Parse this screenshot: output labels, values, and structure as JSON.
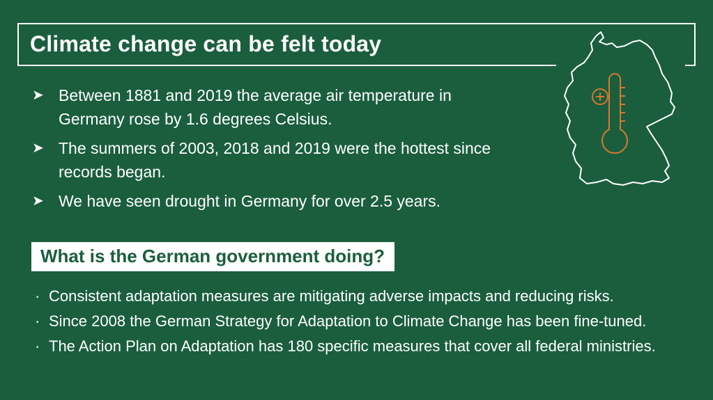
{
  "header": {
    "title": "Climate change can be felt today"
  },
  "facts": {
    "items": [
      {
        "bullet": "➤",
        "text": "Between 1881 and 2019 the average air temperature in Germany rose by 1.6 degrees Celsius."
      },
      {
        "bullet": "➤",
        "text": "The summers of 2003, 2018 and 2019 were the hottest since records began."
      },
      {
        "bullet": "➤",
        "text": "We have seen drought in Germany for over 2.5 years."
      }
    ]
  },
  "illustration": {
    "icon": "germany-map-thermometer-icon",
    "outline_color": "#ffffff",
    "thermometer_color": "#d9782d"
  },
  "government": {
    "heading": "What is the German government doing?",
    "items": [
      {
        "bullet": "·",
        "text": "Consistent adaptation measures are mitigating adverse impacts and reducing risks."
      },
      {
        "bullet": "·",
        "text": "Since 2008 the German Strategy for Adaptation to Climate Change has been fine-tuned."
      },
      {
        "bullet": "·",
        "text": "The Action Plan on Adaptation has 180 specific measures that cover all federal ministries."
      }
    ]
  },
  "colors": {
    "background": "#1a5e3e",
    "text": "#ffffff",
    "accent": "#d9782d"
  }
}
